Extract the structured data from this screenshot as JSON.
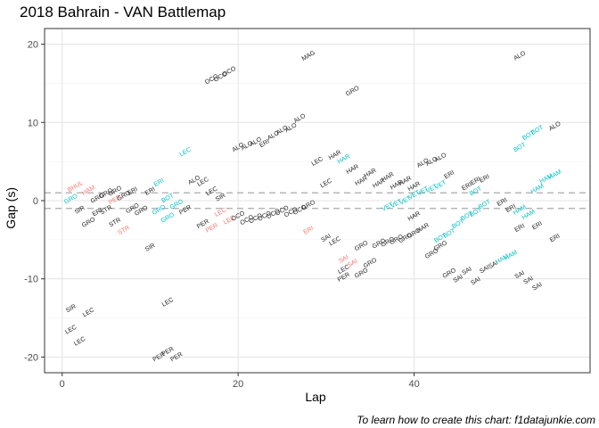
{
  "chart_data": {
    "type": "scatter",
    "title": "2018 Bahrain - VAN Battlemap",
    "xlabel": "Lap",
    "ylabel": "Gap (s)",
    "caption": "To learn how to create this chart: f1datajunkie.com",
    "xlim": [
      -2,
      60
    ],
    "ylim": [
      -22,
      22
    ],
    "xticks": [
      0,
      20,
      40
    ],
    "yticks": [
      -20,
      -10,
      0,
      10,
      20
    ],
    "hlines": [
      1,
      -1
    ],
    "grid": true,
    "legend": "none",
    "colors": {
      "black": "#222222",
      "red": "#F8766D",
      "cyan": "#00BFC4"
    },
    "points": [
      {
        "x": 1,
        "y": -13.8,
        "label": "SIR",
        "c": "black"
      },
      {
        "x": 1,
        "y": -16.5,
        "label": "LEC",
        "c": "black"
      },
      {
        "x": 2,
        "y": -18,
        "label": "LEC",
        "c": "black"
      },
      {
        "x": 3,
        "y": -14.3,
        "label": "LEC",
        "c": "black"
      },
      {
        "x": 12,
        "y": -13,
        "label": "LEC",
        "c": "black"
      },
      {
        "x": 11,
        "y": -20,
        "label": "PER",
        "c": "black"
      },
      {
        "x": 12,
        "y": -19.3,
        "label": "PER",
        "c": "black"
      },
      {
        "x": 13,
        "y": -20,
        "label": "PER",
        "c": "black"
      },
      {
        "x": 10,
        "y": -6,
        "label": "SIR",
        "c": "black"
      },
      {
        "x": 1,
        "y": 0.2,
        "label": "GRO",
        "c": "cyan"
      },
      {
        "x": 1.5,
        "y": 1.8,
        "label": "BHUL",
        "c": "red"
      },
      {
        "x": 3,
        "y": 1.3,
        "label": "HAM",
        "c": "red"
      },
      {
        "x": 2,
        "y": -1.2,
        "label": "SIR",
        "c": "black"
      },
      {
        "x": 3,
        "y": -2.8,
        "label": "GRO",
        "c": "black"
      },
      {
        "x": 4,
        "y": -1.5,
        "label": "ERI",
        "c": "black"
      },
      {
        "x": 4,
        "y": 0.3,
        "label": "GRO",
        "c": "black"
      },
      {
        "x": 5,
        "y": -1.2,
        "label": "STR",
        "c": "black"
      },
      {
        "x": 5,
        "y": 0.9,
        "label": "GRO",
        "c": "black"
      },
      {
        "x": 6,
        "y": 1.2,
        "label": "GRO",
        "c": "black"
      },
      {
        "x": 6,
        "y": 0.1,
        "label": "PER",
        "c": "red"
      },
      {
        "x": 7,
        "y": 0.6,
        "label": "GRO",
        "c": "black"
      },
      {
        "x": 8,
        "y": 1.2,
        "label": "ERI",
        "c": "black"
      },
      {
        "x": 6,
        "y": -2.8,
        "label": "STR",
        "c": "black"
      },
      {
        "x": 7,
        "y": -3.8,
        "label": "STR",
        "c": "red"
      },
      {
        "x": 8,
        "y": -1,
        "label": "GRO",
        "c": "black"
      },
      {
        "x": 9,
        "y": -1.3,
        "label": "GRO",
        "c": "black"
      },
      {
        "x": 10,
        "y": 1.2,
        "label": "ERI",
        "c": "black"
      },
      {
        "x": 11,
        "y": 2.3,
        "label": "ERI",
        "c": "cyan"
      },
      {
        "x": 11,
        "y": -1.2,
        "label": "GRO",
        "c": "cyan"
      },
      {
        "x": 12,
        "y": 0.3,
        "label": "BOT",
        "c": "cyan"
      },
      {
        "x": 13,
        "y": -0.5,
        "label": "GRO",
        "c": "cyan"
      },
      {
        "x": 12,
        "y": -2.2,
        "label": "GRO",
        "c": "cyan"
      },
      {
        "x": 14,
        "y": -1.2,
        "label": "PER",
        "c": "black"
      },
      {
        "x": 15,
        "y": 2.6,
        "label": "ALO",
        "c": "black"
      },
      {
        "x": 16,
        "y": 2.4,
        "label": "LEC",
        "c": "black"
      },
      {
        "x": 16,
        "y": -3,
        "label": "PER",
        "c": "black"
      },
      {
        "x": 17,
        "y": 1.2,
        "label": "LEC",
        "c": "black"
      },
      {
        "x": 17,
        "y": -3.5,
        "label": "PER",
        "c": "red"
      },
      {
        "x": 18,
        "y": 0.4,
        "label": "SIR",
        "c": "black"
      },
      {
        "x": 18,
        "y": -1.5,
        "label": "LEC",
        "c": "red"
      },
      {
        "x": 19,
        "y": -2.5,
        "label": "LEC",
        "c": "red"
      },
      {
        "x": 20,
        "y": -2,
        "label": "OCO",
        "c": "black"
      },
      {
        "x": 21,
        "y": -2.5,
        "label": "OCO",
        "c": "black"
      },
      {
        "x": 22,
        "y": -2.3,
        "label": "OCO",
        "c": "black"
      },
      {
        "x": 23,
        "y": -2,
        "label": "OCO",
        "c": "black"
      },
      {
        "x": 24,
        "y": -1.7,
        "label": "OCO",
        "c": "black"
      },
      {
        "x": 25,
        "y": -1.3,
        "label": "OCO",
        "c": "black"
      },
      {
        "x": 26,
        "y": -1.5,
        "label": "OCO",
        "c": "black"
      },
      {
        "x": 27,
        "y": -1.2,
        "label": "OCO",
        "c": "black"
      },
      {
        "x": 28,
        "y": -0.6,
        "label": "GRO",
        "c": "black"
      },
      {
        "x": 28,
        "y": -3.8,
        "label": "ERI",
        "c": "red"
      },
      {
        "x": 30,
        "y": -4.8,
        "label": "SAI",
        "c": "black"
      },
      {
        "x": 31,
        "y": -5.2,
        "label": "LEC",
        "c": "black"
      },
      {
        "x": 32,
        "y": -7.5,
        "label": "SAI",
        "c": "red"
      },
      {
        "x": 33,
        "y": -8,
        "label": "SAI",
        "c": "red"
      },
      {
        "x": 32,
        "y": -8.8,
        "label": "LEC",
        "c": "black"
      },
      {
        "x": 32,
        "y": -9.8,
        "label": "PER",
        "c": "black"
      },
      {
        "x": 34,
        "y": -9.3,
        "label": "GRO",
        "c": "black"
      },
      {
        "x": 35,
        "y": -8,
        "label": "GRO",
        "c": "black"
      },
      {
        "x": 34,
        "y": -5.8,
        "label": "GRO",
        "c": "black"
      },
      {
        "x": 36,
        "y": -5.5,
        "label": "GRO",
        "c": "black"
      },
      {
        "x": 37,
        "y": -5.3,
        "label": "GRO",
        "c": "black"
      },
      {
        "x": 38,
        "y": -5,
        "label": "GRO",
        "c": "black"
      },
      {
        "x": 39,
        "y": -4.8,
        "label": "GRO",
        "c": "black"
      },
      {
        "x": 40,
        "y": -4.2,
        "label": "GRO",
        "c": "black"
      },
      {
        "x": 41,
        "y": -3.5,
        "label": "HAR",
        "c": "black"
      },
      {
        "x": 17,
        "y": 15.5,
        "label": "OCO",
        "c": "black"
      },
      {
        "x": 18,
        "y": 15.8,
        "label": "OCO",
        "c": "black"
      },
      {
        "x": 19,
        "y": 16.5,
        "label": "OCO",
        "c": "black"
      },
      {
        "x": 28,
        "y": 18.5,
        "label": "MAG",
        "c": "black"
      },
      {
        "x": 33,
        "y": 14,
        "label": "GRO",
        "c": "black"
      },
      {
        "x": 52,
        "y": 18.5,
        "label": "ALO",
        "c": "black"
      },
      {
        "x": 56,
        "y": 9.5,
        "label": "ALO",
        "c": "black"
      },
      {
        "x": 20,
        "y": 6.8,
        "label": "ALO",
        "c": "black"
      },
      {
        "x": 21,
        "y": 7,
        "label": "ALO",
        "c": "black"
      },
      {
        "x": 22,
        "y": 7.5,
        "label": "ALO",
        "c": "black"
      },
      {
        "x": 23,
        "y": 7.3,
        "label": "ERI",
        "c": "black"
      },
      {
        "x": 24,
        "y": 8.3,
        "label": "ALO",
        "c": "black"
      },
      {
        "x": 25,
        "y": 9,
        "label": "ALO",
        "c": "black"
      },
      {
        "x": 26,
        "y": 9.3,
        "label": "ALO",
        "c": "black"
      },
      {
        "x": 27,
        "y": 10.5,
        "label": "ALO",
        "c": "black"
      },
      {
        "x": 14,
        "y": 6.2,
        "label": "LEC",
        "c": "cyan"
      },
      {
        "x": 29,
        "y": 5,
        "label": "LEC",
        "c": "black"
      },
      {
        "x": 31,
        "y": 5.8,
        "label": "HAR",
        "c": "black"
      },
      {
        "x": 32,
        "y": 5.3,
        "label": "HAR",
        "c": "cyan"
      },
      {
        "x": 33,
        "y": 4,
        "label": "HAR",
        "c": "black"
      },
      {
        "x": 35,
        "y": 3.5,
        "label": "HAR",
        "c": "black"
      },
      {
        "x": 37,
        "y": 3,
        "label": "HAR",
        "c": "black"
      },
      {
        "x": 34,
        "y": 2.5,
        "label": "HAR",
        "c": "black"
      },
      {
        "x": 36,
        "y": 2.2,
        "label": "HAR",
        "c": "black"
      },
      {
        "x": 38,
        "y": 2,
        "label": "HAR",
        "c": "black"
      },
      {
        "x": 39,
        "y": 2.5,
        "label": "HAR",
        "c": "black"
      },
      {
        "x": 40,
        "y": 1.8,
        "label": "HAR",
        "c": "black"
      },
      {
        "x": 30,
        "y": 2.2,
        "label": "LEC",
        "c": "black"
      },
      {
        "x": 40,
        "y": -2,
        "label": "HAR",
        "c": "black"
      },
      {
        "x": 37,
        "y": -0.8,
        "label": "VET",
        "c": "cyan"
      },
      {
        "x": 38,
        "y": -0.4,
        "label": "VET",
        "c": "cyan"
      },
      {
        "x": 39,
        "y": 0,
        "label": "VET",
        "c": "cyan"
      },
      {
        "x": 40,
        "y": 0.7,
        "label": "VET",
        "c": "cyan"
      },
      {
        "x": 41,
        "y": 1.2,
        "label": "VET",
        "c": "cyan"
      },
      {
        "x": 42,
        "y": 1.5,
        "label": "VET",
        "c": "cyan"
      },
      {
        "x": 43,
        "y": 2,
        "label": "VET",
        "c": "cyan"
      },
      {
        "x": 41,
        "y": 4.8,
        "label": "ALO",
        "c": "black"
      },
      {
        "x": 42,
        "y": 5,
        "label": "ALO",
        "c": "black"
      },
      {
        "x": 43,
        "y": 5.5,
        "label": "ALO",
        "c": "black"
      },
      {
        "x": 44,
        "y": 3.3,
        "label": "ERI",
        "c": "black"
      },
      {
        "x": 46,
        "y": 1.8,
        "label": "ERI",
        "c": "black"
      },
      {
        "x": 47,
        "y": 2.5,
        "label": "ERI",
        "c": "black"
      },
      {
        "x": 48,
        "y": 2.8,
        "label": "ERI",
        "c": "black"
      },
      {
        "x": 47,
        "y": 1.2,
        "label": "BOT",
        "c": "cyan"
      },
      {
        "x": 48,
        "y": -0.5,
        "label": "BOT",
        "c": "cyan"
      },
      {
        "x": 50,
        "y": -0.2,
        "label": "ERI",
        "c": "black"
      },
      {
        "x": 51,
        "y": -1,
        "label": "ERI",
        "c": "black"
      },
      {
        "x": 52,
        "y": -1.2,
        "label": "HAM",
        "c": "cyan"
      },
      {
        "x": 53,
        "y": -1.8,
        "label": "HAM",
        "c": "cyan"
      },
      {
        "x": 52,
        "y": -3.5,
        "label": "ERI",
        "c": "black"
      },
      {
        "x": 54,
        "y": -3.2,
        "label": "ERI",
        "c": "black"
      },
      {
        "x": 56,
        "y": -4.8,
        "label": "ERI",
        "c": "black"
      },
      {
        "x": 54,
        "y": 1.5,
        "label": "HAM",
        "c": "cyan"
      },
      {
        "x": 55,
        "y": 2.8,
        "label": "HAM",
        "c": "cyan"
      },
      {
        "x": 56,
        "y": 3.3,
        "label": "HAM",
        "c": "cyan"
      },
      {
        "x": 52,
        "y": 6.8,
        "label": "BOT",
        "c": "cyan"
      },
      {
        "x": 53,
        "y": 8.3,
        "label": "BOT",
        "c": "cyan"
      },
      {
        "x": 54,
        "y": 9,
        "label": "BOT",
        "c": "cyan"
      },
      {
        "x": 43,
        "y": -4.8,
        "label": "BOT",
        "c": "cyan"
      },
      {
        "x": 44,
        "y": -4.2,
        "label": "BOT",
        "c": "cyan"
      },
      {
        "x": 45,
        "y": -3,
        "label": "BOT",
        "c": "cyan"
      },
      {
        "x": 46,
        "y": -2,
        "label": "BOT",
        "c": "cyan"
      },
      {
        "x": 47,
        "y": -1.5,
        "label": "BOT",
        "c": "cyan"
      },
      {
        "x": 42,
        "y": -6.8,
        "label": "GRO",
        "c": "black"
      },
      {
        "x": 43,
        "y": -5.8,
        "label": "GRO",
        "c": "black"
      },
      {
        "x": 44,
        "y": -9.3,
        "label": "GRO",
        "c": "black"
      },
      {
        "x": 45,
        "y": -10,
        "label": "SAI",
        "c": "black"
      },
      {
        "x": 46,
        "y": -9,
        "label": "SAI",
        "c": "black"
      },
      {
        "x": 47,
        "y": -10.3,
        "label": "SAI",
        "c": "black"
      },
      {
        "x": 48,
        "y": -8.8,
        "label": "SAI",
        "c": "black"
      },
      {
        "x": 49,
        "y": -8.2,
        "label": "SAI",
        "c": "black"
      },
      {
        "x": 50,
        "y": -7.5,
        "label": "HAM",
        "c": "cyan"
      },
      {
        "x": 51,
        "y": -7,
        "label": "HAM",
        "c": "cyan"
      },
      {
        "x": 52,
        "y": -9.5,
        "label": "SAI",
        "c": "black"
      },
      {
        "x": 53,
        "y": -10.2,
        "label": "SAI",
        "c": "black"
      },
      {
        "x": 54,
        "y": -11,
        "label": "SAI",
        "c": "black"
      }
    ]
  }
}
